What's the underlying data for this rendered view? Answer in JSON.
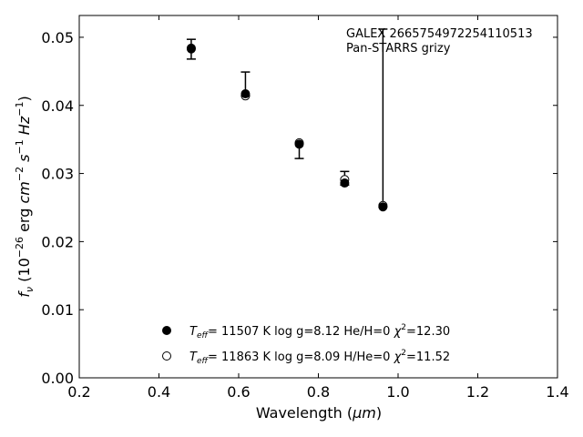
{
  "chart_data": {
    "type": "scatter",
    "xlabel_text": "Wavelength (",
    "xlabel_unit": "μm",
    "xlabel_close": ")",
    "ylabel_prefix": "f",
    "ylabel_sub": "ν",
    "ylabel_rest": " (10",
    "ylabel_exp1": "−26",
    "ylabel_mid": " erg ",
    "ylabel_cm": "cm",
    "ylabel_exp2": "−2",
    "ylabel_s": " s",
    "ylabel_exp3": "−1",
    "ylabel_hz": " Hz",
    "ylabel_exp4": "−1",
    "ylabel_close": ")",
    "xlim": [
      0.2,
      1.4
    ],
    "ylim": [
      0.0,
      0.0532
    ],
    "xticks": [
      0.2,
      0.4,
      0.6,
      0.8,
      1.0,
      1.2,
      1.4
    ],
    "xtick_labels": [
      "0.2",
      "0.4",
      "0.6",
      "0.8",
      "1.0",
      "1.2",
      "1.4"
    ],
    "yticks": [
      0.0,
      0.01,
      0.02,
      0.03,
      0.04,
      0.05
    ],
    "ytick_labels": [
      "0.00",
      "0.01",
      "0.02",
      "0.03",
      "0.04",
      "0.05"
    ],
    "grid": false,
    "annotation_lines": [
      "GALEX 2665754972254110513",
      "Pan-STARRS grizy"
    ],
    "observed": {
      "x": [
        0.481,
        0.617,
        0.752,
        0.866,
        0.962
      ],
      "y": [
        0.0483,
        0.0417,
        0.0343,
        0.0286,
        0.0251
      ],
      "err_low": [
        0.0468,
        0.0414,
        0.0322,
        0.0283,
        0.0251
      ],
      "err_high": [
        0.0497,
        0.0449,
        0.0344,
        0.0303,
        0.0512
      ]
    },
    "series": [
      {
        "marker": "filled",
        "x": [
          0.481,
          0.617,
          0.752,
          0.866,
          0.962
        ],
        "y": [
          0.0483,
          0.0417,
          0.0343,
          0.0286,
          0.0251
        ],
        "label_T": "T",
        "label_Tsub": "eff",
        "label_main": "= 11507 K  log g=8.12  He/H=0  ",
        "label_chi": "χ",
        "label_chi_sup": "2",
        "label_chi_val": "=12.30"
      },
      {
        "marker": "open",
        "x": [
          0.481,
          0.617,
          0.752,
          0.866,
          0.962
        ],
        "y": [
          0.0484,
          0.0414,
          0.0345,
          0.0291,
          0.0253
        ],
        "label_T": "T",
        "label_Tsub": "eff",
        "label_main": "= 11863 K  log g=8.09  H/He=0  ",
        "label_chi": "χ",
        "label_chi_sup": "2",
        "label_chi_val": "=11.52"
      }
    ],
    "legend_placement": "lower-center"
  }
}
